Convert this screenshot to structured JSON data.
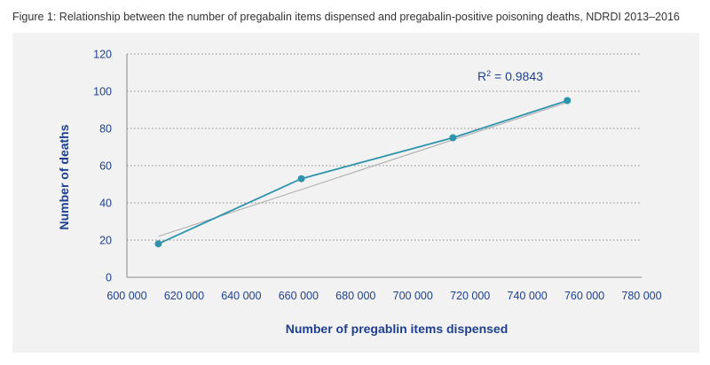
{
  "figure": {
    "title": "Figure 1: Relationship between the number of pregabalin items dispensed and pregabalin-positive poisoning deaths, NDRDI 2013–2016"
  },
  "chart_data": {
    "type": "scatter",
    "title": "",
    "xlabel": "Number of pregablin items dispensed",
    "ylabel": "Number of deaths",
    "xlim": [
      600000,
      780000
    ],
    "ylim": [
      0,
      120
    ],
    "x_ticks": [
      600000,
      620000,
      640000,
      660000,
      680000,
      700000,
      720000,
      740000,
      760000,
      780000
    ],
    "x_tick_labels": [
      "600 000",
      "620 000",
      "640 000",
      "660 000",
      "680 000",
      "700 000",
      "720 000",
      "740 000",
      "760 000",
      "780 000"
    ],
    "y_ticks": [
      0,
      20,
      40,
      60,
      80,
      100,
      120
    ],
    "y_tick_labels": [
      "0",
      "20",
      "40",
      "60",
      "80",
      "100",
      "120"
    ],
    "grid": "horizontal-dotted",
    "series": [
      {
        "points": [
          {
            "x": 611000,
            "y": 18
          },
          {
            "x": 661000,
            "y": 53
          },
          {
            "x": 714000,
            "y": 75
          },
          {
            "x": 754000,
            "y": 95
          }
        ],
        "color": "#2e93ad",
        "connected": true
      }
    ],
    "trendline": {
      "x_start": 611000,
      "y_start": 22,
      "x_end": 754000,
      "y_end": 94,
      "color": "#a9a9a9"
    },
    "annotation": {
      "text_base": "R",
      "text_sup": "2",
      "text_rest": " = 0.9843"
    },
    "colors": {
      "axis_text": "#1e3f8f",
      "grid": "#8a8a8a",
      "background": "#f2f2f2"
    }
  }
}
